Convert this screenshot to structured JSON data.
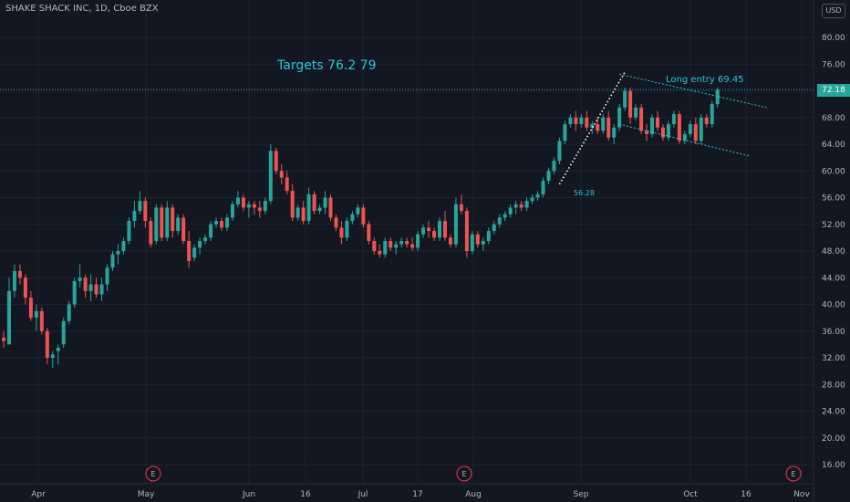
{
  "header": {
    "symbol": "SHAKE SHACK INC, 1D, Cboe BZX",
    "currency": "USD"
  },
  "colors": {
    "background": "#131722",
    "grid": "#1f2230",
    "up": "#26a69a",
    "down": "#ef5350",
    "annotation": "#26c6da",
    "axis_text": "#b2b5be",
    "earnings_marker": "#f23645"
  },
  "annotations": {
    "targets": "Targets 76.2  79",
    "long_entry": "Long entry    69.45",
    "level_note": "56.28"
  },
  "last_price": {
    "label": "72.18",
    "value": 72.18
  },
  "chart_data": {
    "type": "candlestick",
    "ylim": [
      14,
      84
    ],
    "y_ticks": [
      "80.00",
      "76.00",
      "72.00",
      "68.00",
      "64.00",
      "60.00",
      "56.00",
      "52.00",
      "48.00",
      "44.00",
      "40.00",
      "36.00",
      "32.00",
      "28.00",
      "24.00",
      "20.00",
      "16.00"
    ],
    "x_ticks": [
      "Apr",
      "May",
      "Jun",
      "16",
      "Jul",
      "17",
      "Aug",
      "Sep",
      "Oct",
      "16",
      "Nov"
    ],
    "grid": true,
    "earnings_markers": [
      "E",
      "E",
      "E"
    ],
    "series": [
      {
        "values": [
          [
            35,
            36,
            33.5,
            34.5
          ],
          [
            34,
            44,
            34,
            42
          ],
          [
            42,
            46,
            41,
            45
          ],
          [
            45,
            46,
            43,
            44
          ],
          [
            44,
            44.5,
            40,
            41
          ],
          [
            41,
            42,
            37.5,
            38
          ],
          [
            38,
            40,
            36,
            39
          ],
          [
            39,
            39.5,
            35.5,
            36
          ],
          [
            36,
            36.5,
            31,
            32
          ],
          [
            32,
            33,
            30.5,
            32.5
          ],
          [
            33,
            34,
            31,
            33.5
          ],
          [
            34,
            38,
            33.5,
            37.5
          ],
          [
            37.5,
            40.5,
            37,
            40
          ],
          [
            40,
            44,
            39.5,
            43.5
          ],
          [
            43.5,
            46,
            42.5,
            44
          ],
          [
            44,
            44.5,
            41,
            42
          ],
          [
            42,
            44.5,
            40.5,
            43
          ],
          [
            43,
            44,
            41,
            41.5
          ],
          [
            41.5,
            44,
            40.5,
            43
          ],
          [
            43,
            46,
            42,
            45.5
          ],
          [
            45.5,
            48,
            45,
            47.5
          ],
          [
            47.5,
            49,
            46,
            48
          ],
          [
            48,
            50,
            47.5,
            49.5
          ],
          [
            49.5,
            53,
            49,
            52.5
          ],
          [
            52.5,
            55.5,
            51.5,
            54
          ],
          [
            54,
            57,
            53.5,
            55.5
          ],
          [
            55.5,
            56,
            51.5,
            52.5
          ],
          [
            52.5,
            53,
            48.5,
            49
          ],
          [
            49.5,
            55,
            49,
            54.5
          ],
          [
            54.5,
            55,
            49.5,
            50
          ],
          [
            50,
            55.5,
            49.5,
            54.5
          ],
          [
            54.5,
            55,
            50,
            51
          ],
          [
            51,
            53.5,
            50.5,
            53
          ],
          [
            53,
            53.5,
            49,
            49.5
          ],
          [
            49.5,
            51,
            45.5,
            46.5
          ],
          [
            47,
            49,
            46.5,
            48.5
          ],
          [
            48.5,
            50,
            47.5,
            49.5
          ],
          [
            49.5,
            50.5,
            49,
            50
          ],
          [
            50,
            52.5,
            49.5,
            52
          ],
          [
            52,
            53,
            51.5,
            52.5
          ],
          [
            52.5,
            53,
            51,
            51.5
          ],
          [
            51.5,
            53.5,
            51,
            53
          ],
          [
            53,
            55.5,
            52.5,
            55
          ],
          [
            55,
            57,
            54.5,
            56
          ],
          [
            56,
            56.5,
            54,
            54.5
          ],
          [
            54.5,
            55.5,
            53,
            55
          ],
          [
            55,
            55.5,
            53.5,
            54.5
          ],
          [
            54.5,
            55.5,
            53,
            54
          ],
          [
            54,
            56,
            53.5,
            55.5
          ],
          [
            55.5,
            64,
            55,
            63
          ],
          [
            63,
            63.5,
            59.5,
            60
          ],
          [
            60,
            61,
            58,
            59
          ],
          [
            59,
            60,
            56.5,
            57
          ],
          [
            57,
            58,
            52.5,
            53
          ],
          [
            53,
            55,
            52.5,
            54.5
          ],
          [
            54.5,
            55.5,
            52,
            52.5
          ],
          [
            52.5,
            57.5,
            52,
            56.5
          ],
          [
            56.5,
            57,
            53.5,
            54
          ],
          [
            54,
            55,
            53.5,
            54.5
          ],
          [
            54.5,
            57,
            53.5,
            56
          ],
          [
            56,
            56.5,
            52.5,
            53
          ],
          [
            53,
            53.5,
            51,
            51.5
          ],
          [
            51.5,
            52.5,
            49,
            50
          ],
          [
            50,
            53,
            49.5,
            52.5
          ],
          [
            52.5,
            54,
            52,
            53.5
          ],
          [
            53.5,
            55,
            53,
            54.5
          ],
          [
            54.5,
            55,
            51.5,
            52
          ],
          [
            52,
            52.5,
            49,
            49.5
          ],
          [
            49.5,
            50,
            47.5,
            48
          ],
          [
            48,
            49,
            47,
            47.5
          ],
          [
            47.5,
            50,
            47,
            49.5
          ],
          [
            49.5,
            50,
            48,
            48.5
          ],
          [
            48.5,
            49.5,
            47.5,
            49
          ],
          [
            49,
            50,
            48.5,
            49.5
          ],
          [
            49.5,
            50,
            48.5,
            49
          ],
          [
            49,
            50,
            48,
            48.5
          ],
          [
            48.5,
            51,
            48,
            50.5
          ],
          [
            50.5,
            52,
            50,
            51.5
          ],
          [
            51.5,
            52.5,
            50,
            51
          ],
          [
            51,
            51.5,
            49.5,
            50
          ],
          [
            50,
            53,
            49.5,
            52.5
          ],
          [
            52.5,
            54,
            49.5,
            50
          ],
          [
            50,
            50.5,
            48.5,
            49
          ],
          [
            49,
            56,
            48.5,
            55
          ],
          [
            55,
            56.5,
            53.5,
            54
          ],
          [
            54,
            54.5,
            47,
            48
          ],
          [
            48,
            51,
            47.5,
            50.5
          ],
          [
            50.5,
            51,
            48.5,
            49
          ],
          [
            49,
            50,
            48,
            49.5
          ],
          [
            49.5,
            51.5,
            49,
            51
          ],
          [
            51,
            52.5,
            50.5,
            52
          ],
          [
            52,
            53.5,
            51.5,
            53
          ],
          [
            53,
            54,
            52.5,
            53.5
          ],
          [
            53.5,
            55,
            53,
            54.5
          ],
          [
            54.5,
            55.5,
            53.5,
            55
          ],
          [
            55,
            55.5,
            54,
            54.5
          ],
          [
            54.5,
            56,
            54,
            55.5
          ],
          [
            55.5,
            56.5,
            55,
            56
          ],
          [
            56,
            57,
            55.5,
            56.5
          ],
          [
            56.5,
            59,
            56,
            58.5
          ],
          [
            58.5,
            60.5,
            58,
            60
          ],
          [
            60,
            62,
            59.5,
            61.5
          ],
          [
            61.5,
            65,
            61,
            64.5
          ],
          [
            64.5,
            67.5,
            64,
            67
          ],
          [
            67,
            68.5,
            66.5,
            68
          ],
          [
            68,
            69,
            66,
            67
          ],
          [
            67,
            68.5,
            66.5,
            68
          ],
          [
            68,
            69,
            66,
            66.5
          ],
          [
            66.5,
            67.5,
            65.5,
            67
          ],
          [
            67,
            68,
            65.5,
            66
          ],
          [
            66,
            68.5,
            65.5,
            68
          ],
          [
            68,
            69,
            64.5,
            65
          ],
          [
            65,
            67,
            64,
            66.5
          ],
          [
            66.5,
            70,
            66,
            69.5
          ],
          [
            69.5,
            72.5,
            69,
            72
          ],
          [
            72,
            72.5,
            67,
            68
          ],
          [
            68,
            70,
            67.5,
            69.5
          ],
          [
            69.5,
            70,
            65.5,
            66
          ],
          [
            66,
            67,
            64.5,
            65.5
          ],
          [
            65.5,
            68.5,
            65,
            68
          ],
          [
            68,
            69,
            66,
            66.5
          ],
          [
            66.5,
            67,
            64.5,
            65
          ],
          [
            65,
            67.5,
            64.5,
            67
          ],
          [
            67,
            69,
            66.5,
            68.5
          ],
          [
            68.5,
            69,
            64,
            64.5
          ],
          [
            64.5,
            66,
            64,
            65.5
          ],
          [
            65.5,
            67.5,
            65,
            67
          ],
          [
            67,
            68,
            64,
            64.5
          ],
          [
            64.5,
            68.5,
            64,
            68
          ],
          [
            68,
            68.5,
            66.5,
            67
          ],
          [
            67,
            70.5,
            66.5,
            70
          ],
          [
            70,
            72.5,
            69.5,
            72.18
          ]
        ]
      }
    ],
    "overlays": {
      "channel_upper": [
        [
          113,
          74.5
        ],
        [
          140,
          69.5
        ]
      ],
      "channel_lower": [
        [
          113,
          67
        ],
        [
          137,
          62.2
        ]
      ],
      "flagpole": [
        [
          102,
          58
        ],
        [
          114,
          74.8
        ]
      ]
    }
  }
}
